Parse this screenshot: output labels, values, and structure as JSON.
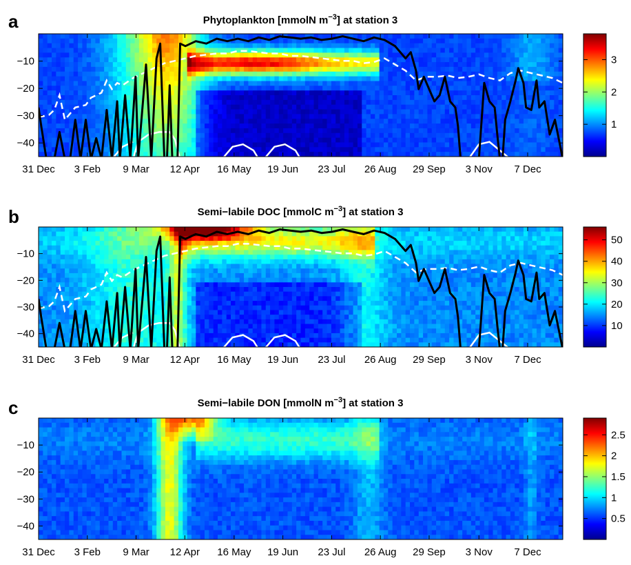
{
  "chart_data": [
    {
      "panel_label": "a",
      "type": "heatmap",
      "title": "Phytoplankton [mmolN m^-3] at station 3",
      "title_parts": {
        "main": "Phytoplankton [mmolN m",
        "sup": "−3",
        "rest": "] at station 3"
      },
      "x_ticks": [
        "31 Dec",
        "3 Feb",
        "9 Mar",
        "12 Apr",
        "16 May",
        "19 Jun",
        "23 Jul",
        "26 Aug",
        "29 Sep",
        "3 Nov",
        "7 Dec"
      ],
      "y_ticks": [
        "−10",
        "−20",
        "−30",
        "−40"
      ],
      "y_tick_values": [
        -10,
        -20,
        -30,
        -40
      ],
      "ylim": [
        -45,
        0
      ],
      "colorbar": {
        "ticks": [
          "1",
          "2",
          "3"
        ],
        "tick_values": [
          1,
          2,
          3
        ],
        "range": [
          0,
          3.8
        ]
      },
      "colormap": "jet",
      "overlays": [
        "mixed-layer depth (solid black)",
        "euphotic depth (dashed white)",
        "contour (solid white)"
      ]
    },
    {
      "panel_label": "b",
      "type": "heatmap",
      "title": "Semi-labile DOC [mmolC m^-3] at station 3",
      "title_parts": {
        "main": "Semi−labile DOC [mmolC m",
        "sup": "−3",
        "rest": "] at station 3"
      },
      "x_ticks": [
        "31 Dec",
        "3 Feb",
        "9 Mar",
        "12 Apr",
        "16 May",
        "19 Jun",
        "23 Jul",
        "26 Aug",
        "29 Sep",
        "3 Nov",
        "7 Dec"
      ],
      "y_ticks": [
        "−10",
        "−20",
        "−30",
        "−40"
      ],
      "y_tick_values": [
        -10,
        -20,
        -30,
        -40
      ],
      "ylim": [
        -45,
        0
      ],
      "colorbar": {
        "ticks": [
          "10",
          "20",
          "30",
          "40",
          "50"
        ],
        "tick_values": [
          10,
          20,
          30,
          40,
          50
        ],
        "range": [
          0,
          56
        ]
      },
      "colormap": "jet",
      "overlays": [
        "mixed-layer depth (solid black)",
        "euphotic depth (dashed white)",
        "contour (solid white)"
      ]
    },
    {
      "panel_label": "c",
      "type": "heatmap",
      "title": "Semi-labile DON [mmolN m^-3] at station 3",
      "title_parts": {
        "main": "Semi−labile DON [mmolN m",
        "sup": "−3",
        "rest": "] at station 3"
      },
      "x_ticks": [
        "31 Dec",
        "3 Feb",
        "9 Mar",
        "12 Apr",
        "16 May",
        "19 Jun",
        "23 Jul",
        "26 Aug",
        "29 Sep",
        "3 Nov",
        "7 Dec"
      ],
      "y_ticks": [
        "−10",
        "−20",
        "−30",
        "−40"
      ],
      "y_tick_values": [
        -10,
        -20,
        -30,
        -40
      ],
      "ylim": [
        -45,
        0
      ],
      "colorbar": {
        "ticks": [
          "0.5",
          "1",
          "1.5",
          "2",
          "2.5"
        ],
        "tick_values": [
          0.5,
          1,
          1.5,
          2,
          2.5
        ],
        "range": [
          0,
          2.9
        ]
      },
      "colormap": "jet",
      "overlays": []
    }
  ]
}
